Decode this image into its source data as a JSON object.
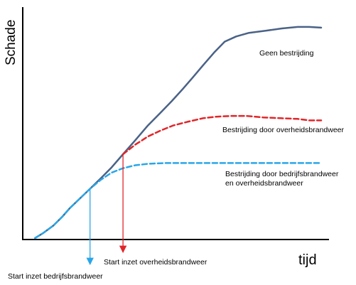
{
  "chart_data": {
    "type": "line",
    "title": "",
    "xlabel": "tijd",
    "ylabel": "Schade",
    "grid": false,
    "legend": "none",
    "series": [
      {
        "name": "Geen bestrijding",
        "color": "#4a6286",
        "style": "solid",
        "points": [
          [
            0.43,
            0
          ],
          [
            0.72,
            0.07
          ],
          [
            1.07,
            0.17
          ],
          [
            1.38,
            0.29
          ],
          [
            1.65,
            0.41
          ],
          [
            2.0,
            0.54
          ],
          [
            2.35,
            0.67
          ],
          [
            2.72,
            0.81
          ],
          [
            3.1,
            0.96
          ],
          [
            3.5,
            1.14
          ],
          [
            3.93,
            1.33
          ],
          [
            4.37,
            1.53
          ],
          [
            4.8,
            1.7
          ],
          [
            5.2,
            1.86
          ],
          [
            5.55,
            2.01
          ],
          [
            5.93,
            2.18
          ],
          [
            6.3,
            2.35
          ],
          [
            6.7,
            2.53
          ],
          [
            7.05,
            2.67
          ],
          [
            7.45,
            2.74
          ],
          [
            7.9,
            2.79
          ],
          [
            8.5,
            2.82
          ],
          [
            9.05,
            2.85
          ],
          [
            9.6,
            2.87
          ],
          [
            10.0,
            2.87
          ],
          [
            10.42,
            2.86
          ]
        ]
      },
      {
        "name": "Bestrijding door overheidsbrandweer",
        "color": "#e0262a",
        "style": "dashed",
        "points": [
          [
            3.5,
            1.14
          ],
          [
            3.93,
            1.27
          ],
          [
            4.37,
            1.38
          ],
          [
            4.8,
            1.46
          ],
          [
            5.25,
            1.53
          ],
          [
            5.75,
            1.58
          ],
          [
            6.3,
            1.63
          ],
          [
            6.75,
            1.65
          ],
          [
            7.3,
            1.66
          ],
          [
            7.8,
            1.66
          ],
          [
            8.4,
            1.64
          ],
          [
            9.0,
            1.63
          ],
          [
            9.6,
            1.62
          ],
          [
            10.0,
            1.6
          ],
          [
            10.42,
            1.6
          ]
        ]
      },
      {
        "name": "Bestrijding door bedrijfsbrandweer en overheidsbrandweer",
        "color": "#29a6e8",
        "style": "dashed",
        "points": [
          [
            0.43,
            0
          ],
          [
            0.72,
            0.07
          ],
          [
            1.07,
            0.17
          ],
          [
            1.38,
            0.29
          ],
          [
            1.65,
            0.41
          ],
          [
            2.0,
            0.54
          ],
          [
            2.35,
            0.67
          ],
          [
            2.72,
            0.79
          ],
          [
            3.1,
            0.89
          ],
          [
            3.5,
            0.95
          ],
          [
            3.93,
            0.99
          ],
          [
            4.4,
            1.01
          ],
          [
            5.0,
            1.02
          ],
          [
            5.75,
            1.02
          ],
          [
            6.5,
            1.02
          ],
          [
            7.3,
            1.02
          ],
          [
            8.1,
            1.02
          ],
          [
            8.9,
            1.02
          ],
          [
            9.7,
            1.02
          ],
          [
            10.42,
            1.02
          ]
        ]
      }
    ],
    "annotations": [
      {
        "name": "start-bedrijfsbrandweer",
        "text": "Start inzet bedrijfsbrandweer",
        "x": 2.35,
        "color": "#29a6e8"
      },
      {
        "name": "start-overheidsbrandweer",
        "text": "Start inzet overheidsbrandweer",
        "x": 3.5,
        "color": "#e0262a"
      }
    ],
    "series_labels": [
      {
        "lines": [
          "Geen bestrijding"
        ]
      },
      {
        "lines": [
          "Bestrijding door overheidsbrandweer"
        ]
      },
      {
        "lines": [
          "Bestrijding door bedrijfsbrandweer",
          "en overheidsbrandweer"
        ]
      }
    ],
    "xlim": [
      0,
      10.42
    ],
    "ylim": [
      0,
      3.12
    ]
  }
}
